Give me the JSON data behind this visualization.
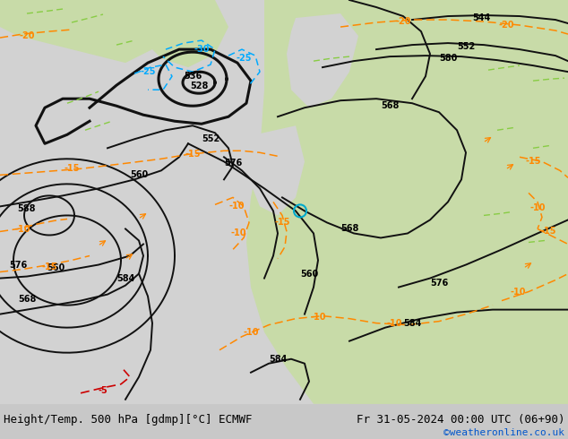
{
  "title_left": "Height/Temp. 500 hPa [gdmp][°C] ECMWF",
  "title_right": "Fr 31-05-2024 00:00 UTC (06+90)",
  "credit": "©weatheronline.co.uk",
  "bg_gray": "#d2d2d2",
  "bg_green": "#c8dba8",
  "font_size_title": 9,
  "font_size_credit": 8,
  "col_height": "#111111",
  "col_temp_neg": "#ff8800",
  "col_temp_cold": "#00aaff",
  "col_temp_red": "#cc0000",
  "col_green_temp": "#88cc44",
  "lw_main": 1.4,
  "lw_thick": 2.2
}
